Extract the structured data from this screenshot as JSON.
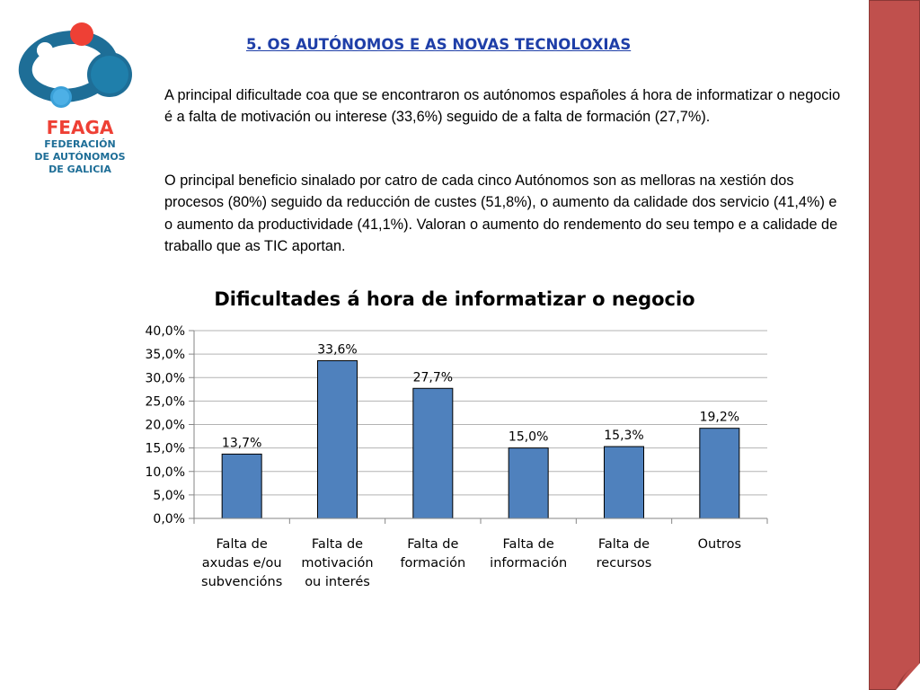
{
  "logo": {
    "icon": "feaga-circles-logo",
    "abbr": "FEAGA",
    "full_lines": [
      "FEDERACIÓN",
      "DE AUTÓNOMOS",
      "DE GALICIA"
    ],
    "colors": {
      "red": "#ee4035",
      "blue": "#1e6e97",
      "light_blue": "#3aa0d8"
    }
  },
  "heading": "5. OS AUTÓNOMOS E AS NOVAS TECNOLOXIAS",
  "paragraphs": [
    "A principal dificultade coa que se encontraron os autónomos españoles á hora de informatizar o negocio é a falta de motivación ou interese (33,6%) seguido de a falta de formación (27,7%).",
    "O principal beneficio sinalado por catro de cada cinco Autónomos son as melloras na xestión dos procesos (80%) seguido da reducción de custes (51,8%), o aumento da calidade dos servicio (41,4%) e o aumento da productividade (41,1%). Valoran o aumento do rendemento do seu tempo e a calidade de traballo que as TIC aportan."
  ],
  "chart_data": {
    "type": "bar",
    "title": "Dificultades á hora de informatizar o negocio",
    "categories": [
      [
        "Falta de",
        "axudas e/ou",
        "subvencións"
      ],
      [
        "Falta de",
        "motivación",
        "ou interés"
      ],
      [
        "Falta de",
        "formación"
      ],
      [
        "Falta de",
        "información"
      ],
      [
        "Falta de",
        "recursos"
      ],
      [
        "Outros"
      ]
    ],
    "values": [
      13.7,
      33.6,
      27.7,
      15.0,
      15.3,
      19.2
    ],
    "data_labels": [
      "13,7%",
      "33,6%",
      "27,7%",
      "15,0%",
      "15,3%",
      "19,2%"
    ],
    "ylim": [
      0,
      40
    ],
    "yticks": [
      0,
      5,
      10,
      15,
      20,
      25,
      30,
      35,
      40
    ],
    "ytick_labels": [
      "0,0%",
      "5,0%",
      "10,0%",
      "15,0%",
      "20,0%",
      "25,0%",
      "30,0%",
      "35,0%",
      "40,0%"
    ],
    "grid": true,
    "legend": "none",
    "bar_color": "#4f81bd"
  },
  "sidebar": {
    "color": "#c0504d",
    "icon": "page-curl-icon"
  }
}
